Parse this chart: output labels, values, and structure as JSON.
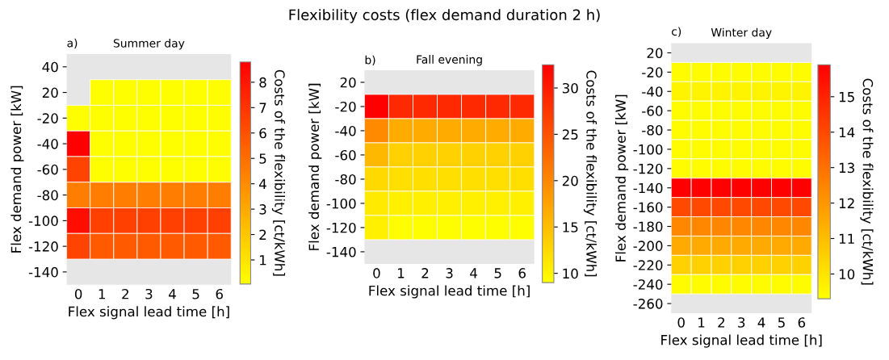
{
  "chart_data": [
    {
      "type": "heatmap",
      "title": "Summer day",
      "xlabel": "Flex signal lead time [h]",
      "ylabel": "Flex demand power [kW]",
      "clabel": "Costs of the flexibility [ct/kWh]",
      "annotations": [
        "Flexibility costs (flex demand duration 2 h)",
        "a)"
      ],
      "categories": [
        "0",
        "1",
        "2",
        "3",
        "4",
        "5",
        "6"
      ],
      "y_categories": [
        "40",
        "20",
        "-20",
        "-40",
        "-60",
        "-80",
        "-100",
        "-120",
        "-140"
      ],
      "cells": [
        [
          null,
          null,
          null,
          null,
          null,
          null,
          null
        ],
        [
          null,
          0.1,
          0.1,
          0.1,
          0.1,
          0.1,
          0.1
        ],
        [
          0.1,
          0.1,
          0.1,
          0.1,
          0.1,
          0.1,
          0.1
        ],
        [
          8.8,
          0.1,
          0.1,
          0.1,
          0.1,
          0.1,
          0.1
        ],
        [
          6.5,
          0.1,
          0.1,
          0.1,
          0.1,
          0.1,
          0.1
        ],
        [
          4.5,
          4.5,
          4.5,
          4.5,
          4.5,
          4.5,
          4.5
        ],
        [
          8.3,
          6.6,
          6.6,
          6.6,
          6.6,
          6.6,
          6.6
        ],
        [
          6.5,
          5.7,
          5.7,
          5.7,
          5.7,
          5.7,
          5.7
        ],
        [
          null,
          null,
          null,
          null,
          null,
          null,
          null
        ]
      ],
      "clim": [
        0.05,
        8.8
      ],
      "cticks": [
        1,
        2,
        3,
        4,
        5,
        6,
        7,
        8
      ]
    },
    {
      "type": "heatmap",
      "title": "Fall evening",
      "xlabel": "Flex signal lead time [h]",
      "ylabel": "Flex demand power [kW]",
      "clabel": "Costs of the flexibility [ct/kWh]",
      "annotations": [
        "b)"
      ],
      "categories": [
        "0",
        "1",
        "2",
        "3",
        "4",
        "5",
        "6"
      ],
      "y_categories": [
        "20",
        "-20",
        "-40",
        "-60",
        "-80",
        "-100",
        "-120",
        "-140"
      ],
      "cells": [
        [
          null,
          null,
          null,
          null,
          null,
          null,
          null
        ],
        [
          32.5,
          28.7,
          28.7,
          28.7,
          28.7,
          28.7,
          28.7
        ],
        [
          19.8,
          16.8,
          16.8,
          16.8,
          16.8,
          16.8,
          16.8
        ],
        [
          15.6,
          13.3,
          13.3,
          13.3,
          13.3,
          13.3,
          13.3
        ],
        [
          12.5,
          12,
          12,
          12,
          12,
          12,
          12
        ],
        [
          11,
          10.4,
          10.4,
          10.4,
          10.4,
          10.4,
          10.4
        ],
        [
          10.4,
          9.1,
          9.1,
          9.1,
          9.1,
          9.1,
          9.1
        ],
        [
          null,
          null,
          null,
          null,
          null,
          null,
          null
        ]
      ],
      "clim": [
        9,
        32.5
      ],
      "cticks": [
        10,
        15,
        20,
        25,
        30
      ]
    },
    {
      "type": "heatmap",
      "title": "Winter day",
      "xlabel": "Flex signal lead time [h]",
      "ylabel": "Flex demand power [kW]",
      "clabel": "Costs of the flexibility [ct/kWh]",
      "annotations": [
        "c)"
      ],
      "categories": [
        "0",
        "1",
        "2",
        "3",
        "4",
        "5",
        "6"
      ],
      "y_categories": [
        "20",
        "-20",
        "-40",
        "-60",
        "-80",
        "-100",
        "-120",
        "-140",
        "-160",
        "-180",
        "-200",
        "-220",
        "-240",
        "-260"
      ],
      "cells": [
        [
          null,
          null,
          null,
          null,
          null,
          null,
          null
        ],
        [
          9.4,
          9.4,
          9.4,
          9.4,
          9.4,
          9.4,
          9.4
        ],
        [
          9.6,
          9.6,
          9.6,
          9.6,
          9.6,
          9.6,
          9.6
        ],
        [
          9.4,
          9.4,
          9.4,
          9.4,
          9.4,
          9.4,
          9.4
        ],
        [
          9.4,
          9.4,
          9.4,
          9.4,
          9.4,
          9.4,
          9.4
        ],
        [
          9.4,
          9.4,
          9.4,
          9.4,
          9.4,
          9.4,
          9.4
        ],
        [
          9.4,
          9.4,
          9.4,
          9.4,
          9.4,
          9.4,
          9.4
        ],
        [
          15.9,
          15.9,
          15.9,
          15.9,
          15.9,
          15.9,
          15.9
        ],
        [
          14.0,
          14.0,
          14.0,
          14.0,
          14.0,
          14.0,
          14.0
        ],
        [
          12.4,
          12.4,
          12.4,
          12.4,
          12.4,
          12.4,
          12.4
        ],
        [
          11.5,
          11.5,
          11.5,
          11.5,
          11.5,
          11.5,
          11.5
        ],
        [
          10.5,
          10.5,
          10.5,
          10.5,
          10.5,
          10.5,
          10.5
        ],
        [
          9.4,
          9.4,
          9.4,
          9.4,
          9.4,
          9.4,
          9.4
        ],
        [
          null,
          null,
          null,
          null,
          null,
          null,
          null
        ]
      ],
      "clim": [
        9.3,
        15.9
      ],
      "cticks": [
        10,
        11,
        12,
        13,
        14,
        15
      ]
    }
  ]
}
